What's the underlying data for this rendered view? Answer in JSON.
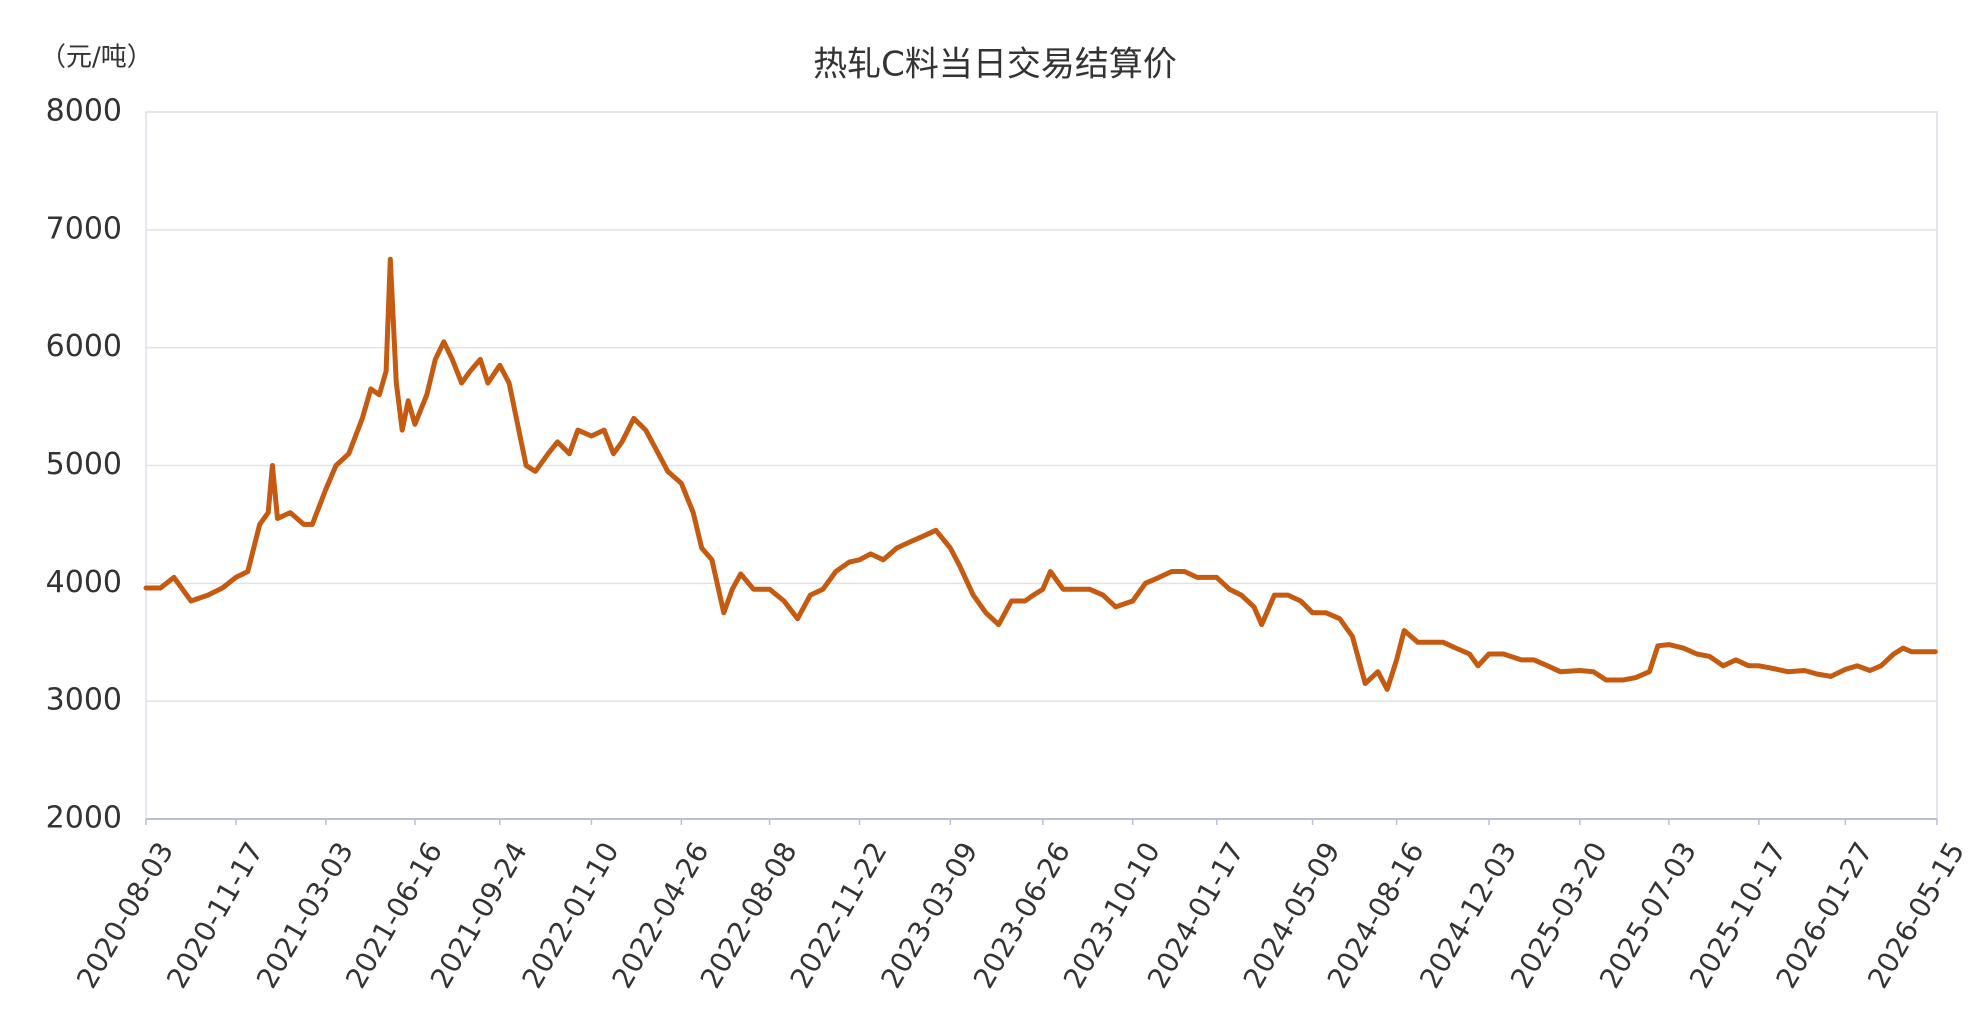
{
  "chart_data": {
    "type": "line",
    "title": "热轧C料当日交易结算价",
    "y_label": "（元/吨）",
    "x": [
      "2020-08-03",
      "2020-08-20",
      "2020-09-05",
      "2020-09-25",
      "2020-10-15",
      "2020-11-01",
      "2020-11-17",
      "2020-12-01",
      "2020-12-15",
      "2020-12-25",
      "2020-12-30",
      "2021-01-05",
      "2021-01-20",
      "2021-02-05",
      "2021-02-15",
      "2021-03-03",
      "2021-03-15",
      "2021-03-30",
      "2021-04-15",
      "2021-04-25",
      "2021-05-05",
      "2021-05-13",
      "2021-05-18",
      "2021-05-25",
      "2021-06-01",
      "2021-06-08",
      "2021-06-16",
      "2021-06-30",
      "2021-07-10",
      "2021-07-20",
      "2021-07-30",
      "2021-08-10",
      "2021-08-20",
      "2021-09-01",
      "2021-09-10",
      "2021-09-24",
      "2021-10-05",
      "2021-10-15",
      "2021-10-25",
      "2021-11-05",
      "2021-11-20",
      "2021-12-01",
      "2021-12-15",
      "2021-12-25",
      "2022-01-10",
      "2022-01-25",
      "2022-02-05",
      "2022-02-15",
      "2022-03-01",
      "2022-03-15",
      "2022-03-30",
      "2022-04-10",
      "2022-04-26",
      "2022-05-10",
      "2022-05-20",
      "2022-06-01",
      "2022-06-15",
      "2022-06-25",
      "2022-07-05",
      "2022-07-20",
      "2022-08-08",
      "2022-08-25",
      "2022-09-10",
      "2022-09-25",
      "2022-10-10",
      "2022-10-25",
      "2022-11-10",
      "2022-11-22",
      "2022-12-05",
      "2022-12-20",
      "2023-01-05",
      "2023-01-20",
      "2023-02-05",
      "2023-02-20",
      "2023-03-09",
      "2023-03-20",
      "2023-04-05",
      "2023-04-20",
      "2023-05-05",
      "2023-05-20",
      "2023-06-05",
      "2023-06-15",
      "2023-06-26",
      "2023-07-05",
      "2023-07-20",
      "2023-08-05",
      "2023-08-20",
      "2023-09-05",
      "2023-09-20",
      "2023-10-10",
      "2023-10-25",
      "2023-11-10",
      "2023-11-25",
      "2023-12-10",
      "2023-12-25",
      "2024-01-17",
      "2024-02-01",
      "2024-02-15",
      "2024-03-01",
      "2024-03-10",
      "2024-03-25",
      "2024-04-10",
      "2024-04-25",
      "2024-05-09",
      "2024-05-25",
      "2024-06-10",
      "2024-06-25",
      "2024-07-10",
      "2024-07-25",
      "2024-08-05",
      "2024-08-16",
      "2024-08-25",
      "2024-09-10",
      "2024-09-25",
      "2024-10-10",
      "2024-10-25",
      "2024-11-10",
      "2024-11-20",
      "2024-12-03",
      "2024-12-20",
      "2025-01-10",
      "2025-01-25",
      "2025-02-10",
      "2025-02-25",
      "2025-03-20",
      "2025-04-05",
      "2025-04-20",
      "2025-05-10",
      "2025-05-25",
      "2025-06-10",
      "2025-06-20",
      "2025-07-03",
      "2025-07-20",
      "2025-08-05",
      "2025-08-20",
      "2025-09-05",
      "2025-09-20",
      "2025-10-05",
      "2025-10-17",
      "2025-11-01",
      "2025-11-20",
      "2025-12-10",
      "2025-12-25",
      "2026-01-10",
      "2026-01-27",
      "2026-02-10",
      "2026-02-25",
      "2026-03-10",
      "2026-03-25",
      "2026-04-05",
      "2026-04-15",
      "2026-05-13"
    ],
    "series": [
      {
        "color": "#c55a11",
        "values": [
          3960,
          3960,
          4050,
          3850,
          3900,
          3960,
          4050,
          4100,
          4500,
          4600,
          5000,
          4550,
          4600,
          4500,
          4500,
          4800,
          5000,
          5100,
          5400,
          5650,
          5600,
          5800,
          6750,
          5700,
          5300,
          5550,
          5350,
          5600,
          5900,
          6050,
          5900,
          5700,
          5800,
          5900,
          5700,
          5850,
          5700,
          5350,
          5000,
          4950,
          5100,
          5200,
          5100,
          5300,
          5250,
          5300,
          5100,
          5200,
          5400,
          5300,
          5100,
          4950,
          4850,
          4600,
          4300,
          4200,
          3750,
          3950,
          4080,
          3950,
          3950,
          3850,
          3700,
          3900,
          3950,
          4100,
          4180,
          4200,
          4250,
          4200,
          4300,
          4350,
          4400,
          4450,
          4300,
          4150,
          3900,
          3750,
          3650,
          3850,
          3850,
          3900,
          3950,
          4100,
          3950,
          3950,
          3950,
          3900,
          3800,
          3850,
          4000,
          4050,
          4100,
          4100,
          4050,
          4050,
          3950,
          3900,
          3800,
          3650,
          3900,
          3900,
          3850,
          3750,
          3750,
          3700,
          3550,
          3150,
          3250,
          3100,
          3350,
          3600,
          3500,
          3500,
          3500,
          3450,
          3400,
          3300,
          3400,
          3400,
          3350,
          3350,
          3300,
          3250,
          3260,
          3250,
          3180,
          3180,
          3200,
          3250,
          3470,
          3480,
          3450,
          3400,
          3380,
          3300,
          3350,
          3300,
          3300,
          3280,
          3250,
          3260,
          3230,
          3210,
          3270,
          3300,
          3260,
          3300,
          3400,
          3450,
          3420,
          3420
        ]
      }
    ],
    "xlim": [
      "2020-08-03",
      "2026-05-15"
    ],
    "xticks": [
      "2020-08-03",
      "2020-11-17",
      "2021-03-03",
      "2021-06-16",
      "2021-09-24",
      "2022-01-10",
      "2022-04-26",
      "2022-08-08",
      "2022-11-22",
      "2023-03-09",
      "2023-06-26",
      "2023-10-10",
      "2024-01-17",
      "2024-05-09",
      "2024-08-16",
      "2024-12-03",
      "2025-03-20",
      "2025-07-03",
      "2025-10-17",
      "2026-01-27",
      "2026-05-15"
    ],
    "ylim": [
      2000,
      8000
    ],
    "yticks": [
      2000,
      3000,
      4000,
      5000,
      6000,
      7000,
      8000
    ],
    "grid": true
  }
}
